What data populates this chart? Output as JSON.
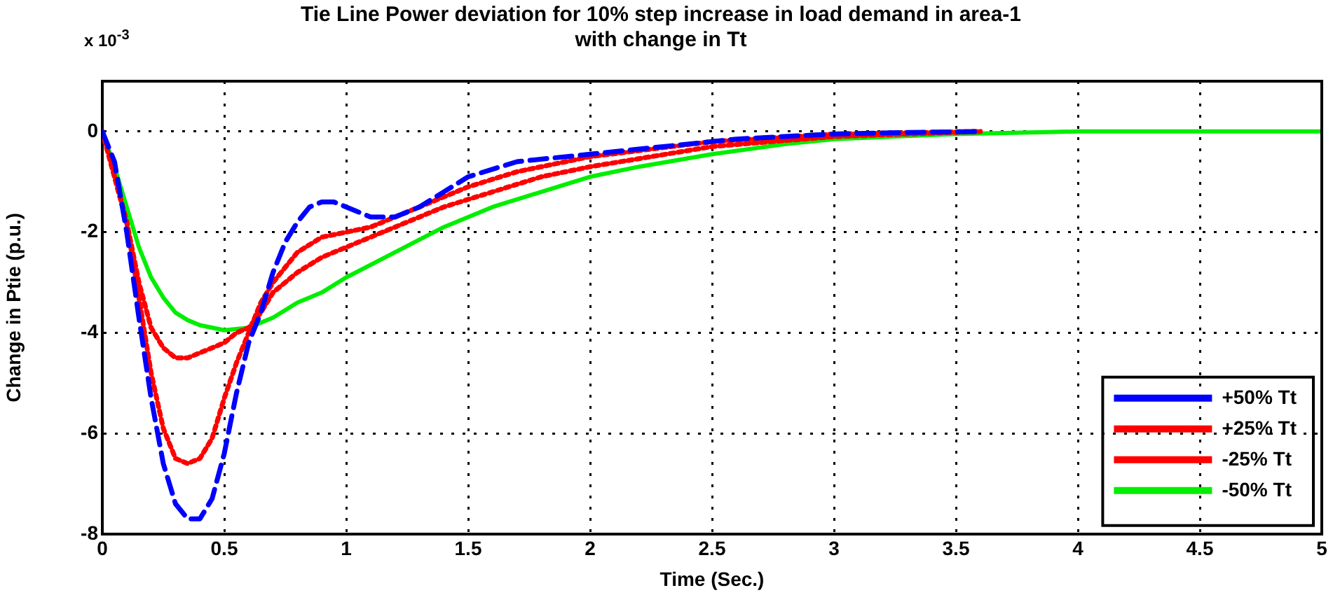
{
  "chart_data": {
    "type": "line",
    "title": "Tie Line Power deviation for 10% step increase in load demand in area-1\nwith change in Tt",
    "xlabel": "Time (Sec.)",
    "ylabel": "Change in Ptie (p.u.)",
    "annotations": [
      "x 10$^{-3}$"
    ],
    "xlim": [
      0,
      5
    ],
    "xticks": [
      0,
      0.5,
      1,
      1.5,
      2,
      2.5,
      3,
      3.5,
      4,
      4.5,
      5
    ],
    "ylim": [
      -8,
      1
    ],
    "yticks": [
      -8,
      -6,
      -4,
      -2,
      0
    ],
    "grid": true,
    "legend": "bottom right",
    "marker": "none",
    "series": [
      {
        "name": "+50% Tt",
        "color": "#0000ff",
        "line_style": "dashed",
        "x": [
          0,
          0.05,
          0.1,
          0.15,
          0.2,
          0.25,
          0.3,
          0.35,
          0.4,
          0.45,
          0.5,
          0.55,
          0.6,
          0.65,
          0.7,
          0.75,
          0.8,
          0.85,
          0.9,
          0.95,
          1.0,
          1.1,
          1.2,
          1.3,
          1.4,
          1.5,
          1.7,
          2.0,
          2.3,
          2.6,
          3.0,
          3.3,
          3.6
        ],
        "values": [
          0,
          -0.6,
          -2,
          -3.7,
          -5.3,
          -6.6,
          -7.4,
          -7.7,
          -7.7,
          -7.3,
          -6.4,
          -5.2,
          -4.2,
          -3.6,
          -2.8,
          -2.2,
          -1.8,
          -1.5,
          -1.4,
          -1.4,
          -1.5,
          -1.7,
          -1.7,
          -1.5,
          -1.2,
          -0.9,
          -0.6,
          -0.45,
          -0.3,
          -0.15,
          -0.05,
          -0.02,
          0
        ]
      },
      {
        "name": "+25% Tt",
        "color": "#ff0000",
        "line_style": "dotted",
        "x": [
          0,
          0.1,
          0.15,
          0.2,
          0.25,
          0.3,
          0.35,
          0.4,
          0.45,
          0.5,
          0.55,
          0.6,
          0.65,
          0.7,
          0.8,
          0.9,
          1.0,
          1.1,
          1.2,
          1.3,
          1.5,
          1.7,
          2.0,
          2.5,
          3.0,
          3.6
        ],
        "values": [
          0,
          -1.8,
          -3.3,
          -4.8,
          -5.9,
          -6.5,
          -6.6,
          -6.5,
          -6.1,
          -5.3,
          -4.6,
          -4.0,
          -3.4,
          -3.0,
          -2.4,
          -2.1,
          -2.0,
          -1.9,
          -1.7,
          -1.5,
          -1.1,
          -0.8,
          -0.5,
          -0.2,
          -0.05,
          0
        ]
      },
      {
        "name": "-25% Tt",
        "color": "#ff0000",
        "line_style": "dotted",
        "x": [
          0,
          0.1,
          0.15,
          0.2,
          0.25,
          0.3,
          0.35,
          0.4,
          0.5,
          0.55,
          0.6,
          0.65,
          0.7,
          0.8,
          0.9,
          1.0,
          1.2,
          1.4,
          1.6,
          1.8,
          2.0,
          2.5,
          3.0,
          3.6
        ],
        "values": [
          0,
          -1.8,
          -3.0,
          -3.9,
          -4.3,
          -4.5,
          -4.5,
          -4.4,
          -4.2,
          -4.0,
          -3.9,
          -3.6,
          -3.2,
          -2.8,
          -2.5,
          -2.3,
          -1.9,
          -1.5,
          -1.2,
          -0.9,
          -0.7,
          -0.3,
          -0.1,
          0
        ]
      },
      {
        "name": "-50% Tt",
        "color": "#00ee00",
        "line_style": "solid",
        "x": [
          0,
          0.05,
          0.1,
          0.15,
          0.2,
          0.25,
          0.3,
          0.35,
          0.4,
          0.5,
          0.6,
          0.7,
          0.8,
          0.9,
          1.0,
          1.2,
          1.4,
          1.6,
          1.8,
          2.0,
          2.2,
          2.5,
          2.8,
          3.0,
          3.5,
          4.0,
          5.0
        ],
        "values": [
          0,
          -0.7,
          -1.5,
          -2.3,
          -2.9,
          -3.3,
          -3.6,
          -3.75,
          -3.85,
          -3.95,
          -3.9,
          -3.7,
          -3.4,
          -3.2,
          -2.9,
          -2.4,
          -1.9,
          -1.5,
          -1.2,
          -0.9,
          -0.7,
          -0.45,
          -0.25,
          -0.15,
          -0.05,
          0,
          0
        ]
      }
    ]
  }
}
